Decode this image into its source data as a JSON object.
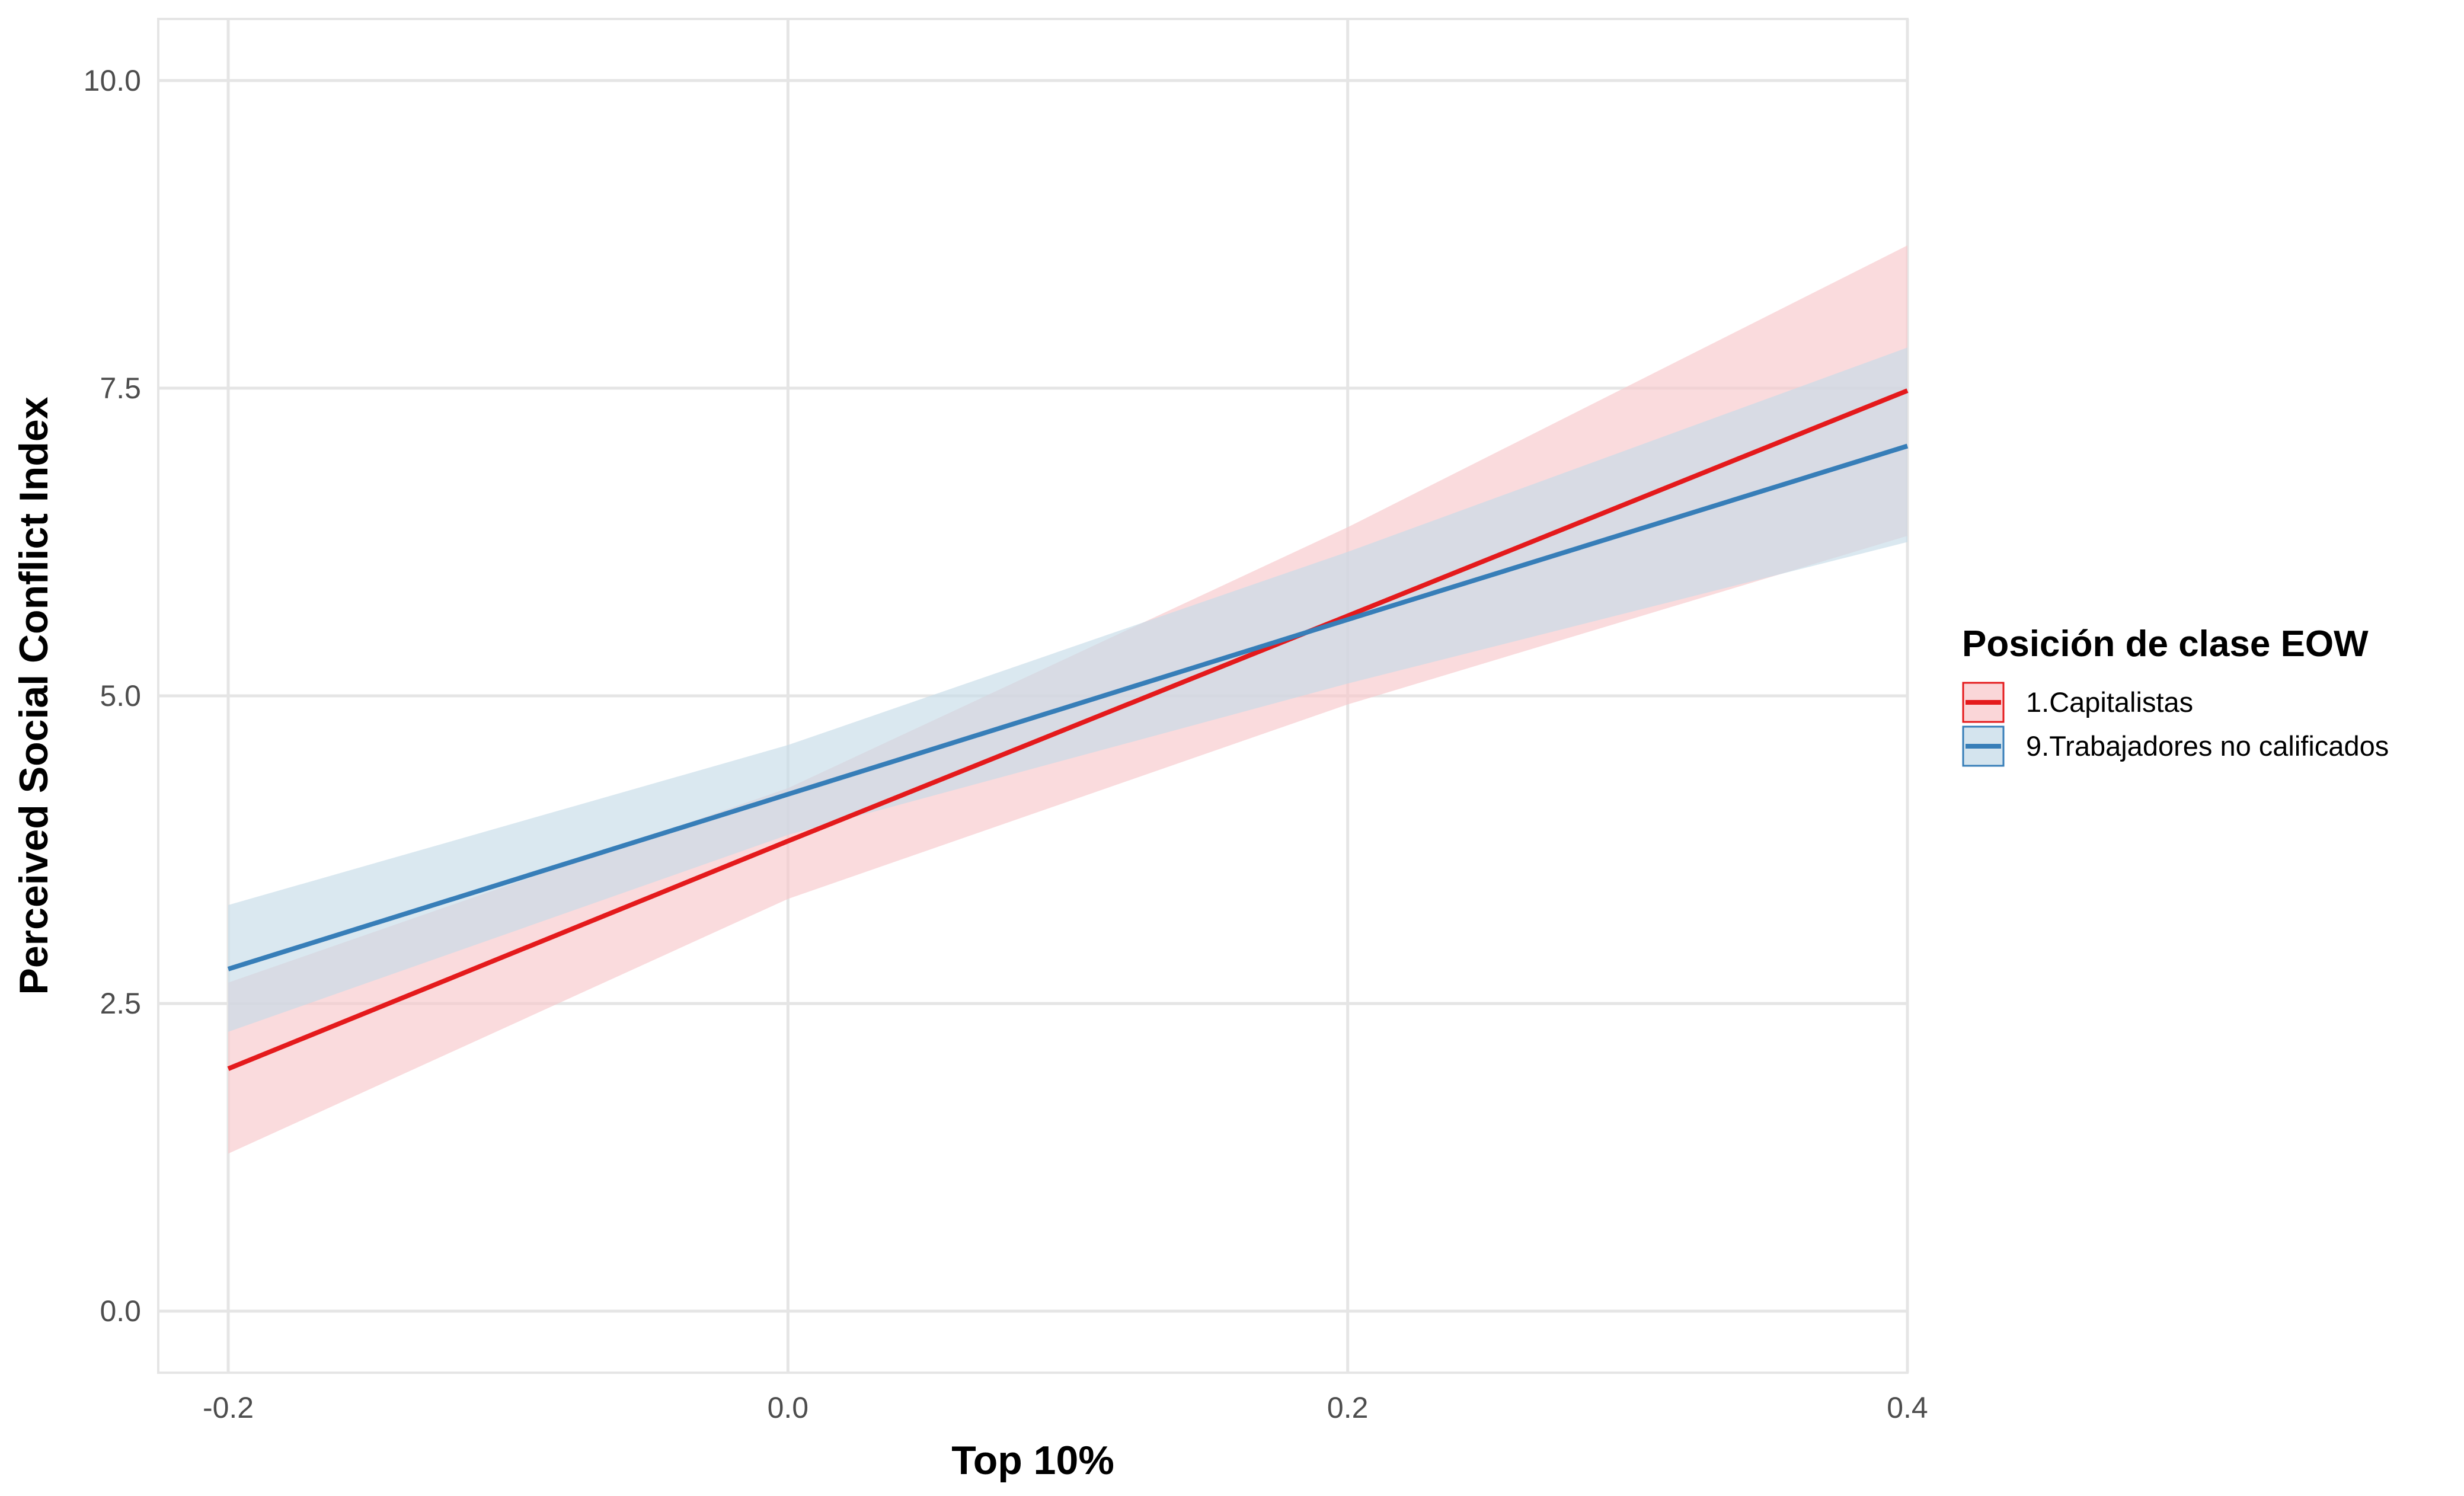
{
  "chart_data": {
    "type": "line",
    "title": "",
    "xlabel": "Top 10%",
    "ylabel": "Perceived Social Conflict Index",
    "xlim": [
      -0.225,
      0.4
    ],
    "ylim": [
      -0.5,
      10.5
    ],
    "x_ticks": [
      -0.2,
      0.0,
      0.2,
      0.4
    ],
    "x_tick_labels": [
      "-0.2",
      "0.0",
      "0.2",
      "0.4"
    ],
    "y_ticks": [
      0.0,
      2.5,
      5.0,
      7.5,
      10.0
    ],
    "y_tick_labels": [
      "0.0",
      "2.5",
      "5.0",
      "7.5",
      "10.0"
    ],
    "grid": true,
    "legend": {
      "title": "Posición de clase EOW",
      "position": "right"
    },
    "series": [
      {
        "name": "1.Capitalistas",
        "color": "#e41a1c",
        "fill": "#f8c8cb",
        "x": [
          -0.2,
          0.0,
          0.2,
          0.4
        ],
        "y": [
          1.97,
          3.82,
          5.65,
          7.48
        ],
        "lower": [
          1.28,
          3.35,
          4.93,
          6.3
        ],
        "upper": [
          2.67,
          4.25,
          6.37,
          8.66
        ]
      },
      {
        "name": "9.Trabajadores no calificados",
        "color": "#377eb8",
        "fill": "#c6dbe8",
        "x": [
          -0.2,
          0.0,
          0.2,
          0.4
        ],
        "y": [
          2.78,
          4.2,
          5.62,
          7.03
        ],
        "lower": [
          2.27,
          3.87,
          5.1,
          6.25
        ],
        "upper": [
          3.3,
          4.6,
          6.17,
          7.83
        ]
      }
    ]
  }
}
